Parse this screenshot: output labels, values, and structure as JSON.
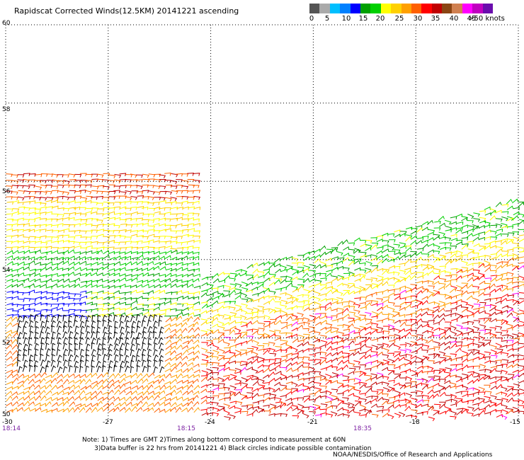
{
  "title": "Rapidscat Corrected Winds(12.5KM) 20141221 ascending",
  "colorbar": {
    "colors": [
      "#555555",
      "#aaaaaa",
      "#00bfff",
      "#0080ff",
      "#0000ff",
      "#00a000",
      "#00d000",
      "#ffff00",
      "#ffd000",
      "#ffa000",
      "#ff6000",
      "#ff0000",
      "#c00000",
      "#8b4513",
      "#d08050",
      "#ff00ff",
      "#c000c0",
      "#6a0dad"
    ],
    "labels": [
      "0",
      "5",
      "10",
      "15",
      "20",
      "25",
      "30",
      "35",
      "40",
      "45",
      ">50 knots"
    ]
  },
  "axes": {
    "lat_ticks": [
      "60",
      "58",
      "56",
      "54",
      "52",
      "50"
    ],
    "lon_ticks": [
      "-30",
      "-27",
      "-24",
      "-21",
      "-18",
      "-15"
    ],
    "times": [
      "18:14",
      "18:15",
      "18:35"
    ]
  },
  "map_data": {
    "lat_range": [
      50,
      60
    ],
    "lon_range": [
      -30,
      -15
    ],
    "grid": true,
    "swath1": {
      "lon_range": [
        -30,
        -24.5
      ],
      "lat_range": [
        50,
        56.2
      ]
    },
    "swath2": {
      "lon_range": [
        -24.3,
        -15
      ],
      "lat_south": 50,
      "lat_north_edge": [
        53.5,
        55.5
      ]
    }
  },
  "notes": {
    "line1": "Note: 1) Times are GMT 2)Times along bottom correspond to measurement at 60N",
    "line2": "3)Data buffer is 22 hrs from 20141221 4) Black circles indicate possible contamination"
  },
  "credit": "NOAA/NESDIS/Office of Research and Applications"
}
